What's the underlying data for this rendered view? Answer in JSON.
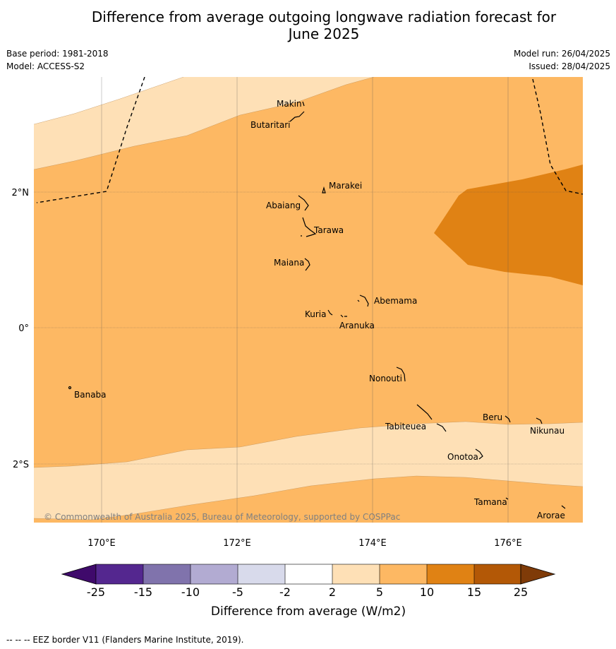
{
  "title": "Difference from average outgoing longwave radiation forecast for June 2025",
  "title_lines": [
    "Difference from average outgoing longwave radiation forecast for",
    "June 2025"
  ],
  "meta": {
    "base_period": "Base period: 1981-2018",
    "model": "Model: ACCESS-S2",
    "model_run": "Model run: 26/04/2025",
    "issued": "Issued: 28/04/2025"
  },
  "axes": {
    "lon_ticks": [
      "170°E",
      "172°E",
      "174°E",
      "176°E"
    ],
    "lat_ticks": [
      "2°N",
      "0°",
      "2°S"
    ]
  },
  "islands": [
    "Makin",
    "Butaritari",
    "Marakei",
    "Abaiang",
    "Tarawa",
    "Maiana",
    "Abemama",
    "Kuria",
    "Aranuka",
    "Banaba",
    "Nonouti",
    "Tabiteuea",
    "Beru",
    "Nikunau",
    "Onotoa",
    "Tamana",
    "Arorae"
  ],
  "copyright": "© Commonwealth of Australia 2025, Bureau of Meteorology, supported by COSPPac",
  "colorbar": {
    "title": "Difference from average (W/m2)",
    "labels": [
      "-25",
      "-15",
      "-10",
      "-5",
      "-2",
      "2",
      "5",
      "10",
      "15",
      "25"
    ],
    "colors": [
      "#3f0a6b",
      "#54278f",
      "#8073ac",
      "#b2abd2",
      "#d8daeb",
      "#ffffff",
      "#fee0b6",
      "#fdb863",
      "#e08214",
      "#b35806",
      "#7f3b08"
    ]
  },
  "footnote": "--  --  -- EEZ border V11 (Flanders Marine Institute, 2019)."
}
